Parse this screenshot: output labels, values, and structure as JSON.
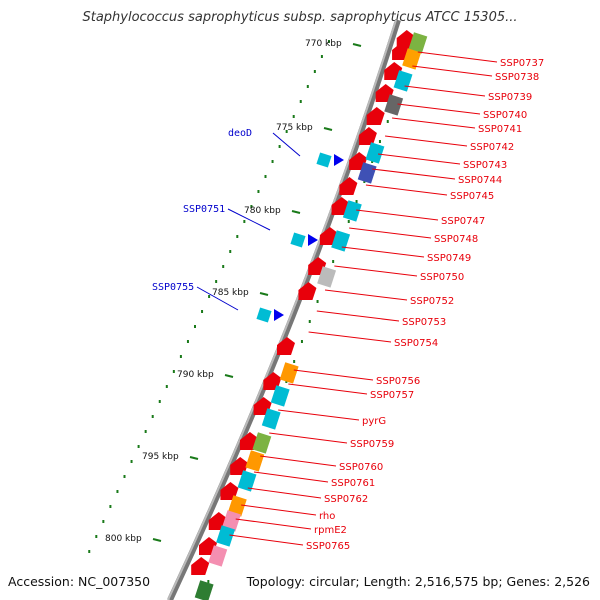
{
  "title": "Staphylococcus saprophyticus subsp. saprophyticus ATCC 15305...",
  "accession": "Accession: NC_007350",
  "topology": "Topology: circular; Length: 2,516,575 bp; Genes: 2,526",
  "kbp_labels": [
    "770 kbp",
    "775 kbp",
    "780 kbp",
    "785 kbp",
    "790 kbp",
    "795 kbp",
    "800 kbp"
  ],
  "left_labels": [
    "deoD",
    "SSP0751",
    "SSP0755"
  ],
  "right_labels": [
    "SSP0737",
    "SSP0738",
    "SSP0739",
    "SSP0740",
    "SSP0741",
    "SSP0742",
    "SSP0743",
    "SSP0744",
    "SSP0745",
    "SSP0747",
    "SSP0748",
    "SSP0749",
    "SSP0750",
    "SSP0752",
    "SSP0753",
    "SSP0754",
    "SSP0756",
    "SSP0757",
    "pyrG",
    "SSP0759",
    "SSP0760",
    "SSP0761",
    "SSP0762",
    "rho",
    "rpmE2",
    "SSP0765"
  ],
  "colors": {
    "backbone": "#8a8a8a",
    "forward_gene": "#e8000b",
    "reverse_gene": "#0000ee",
    "tick": "#1a7a1a",
    "label_red": "#e8000b",
    "label_blue": "#0000cc"
  }
}
